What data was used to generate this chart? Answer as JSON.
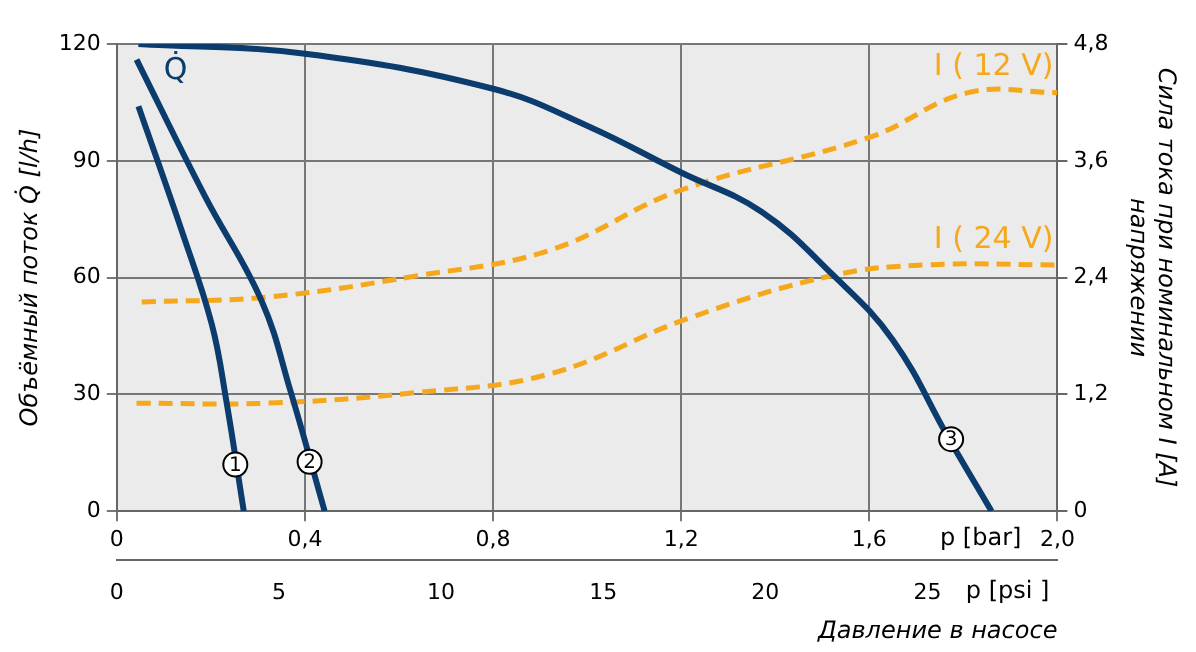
{
  "chart_data": {
    "type": "line",
    "xlabel": "p [bar]",
    "x2label": "p [psi ]",
    "ylabel": "Объёмный поток Q̇ [l/h]",
    "y2label": "Сила тока при номинальном I [A]\nнапряжении",
    "xlim": [
      0,
      2.0
    ],
    "xticks": [
      0,
      {
        "value": 0.4,
        "label": "0,4"
      },
      {
        "value": 0.8,
        "label": "0,8"
      },
      {
        "value": 1.2,
        "label": "1,2"
      },
      {
        "value": 1.6,
        "label": "1,6"
      },
      {
        "value": 2.0,
        "label": "2,0"
      }
    ],
    "x2lim": [
      0,
      29.0075
    ],
    "x2ticks": [
      0,
      5,
      10,
      15,
      20,
      25
    ],
    "ylim": [
      0,
      120
    ],
    "yticks": [
      0,
      30,
      60,
      90,
      120
    ],
    "y2lim": [
      0,
      4.8
    ],
    "y2ticks": [
      0,
      {
        "value": 1.2,
        "label": "1,2"
      },
      {
        "value": 2.4,
        "label": "2,4"
      },
      {
        "value": 3.6,
        "label": "3,6"
      },
      {
        "value": 4.8,
        "label": "4,8"
      }
    ],
    "series": [
      {
        "color": "#0b3c6d",
        "line_style": "solid",
        "x": [
          0.046,
          0.141,
          0.202,
          0.232,
          0.27
        ],
        "values": [
          104,
          71,
          48,
          29,
          0
        ]
      },
      {
        "color": "#0b3c6d",
        "line_style": "solid",
        "x": [
          0.042,
          0.187,
          0.308,
          0.369,
          0.442
        ],
        "values": [
          116,
          81,
          54,
          31,
          0
        ]
      },
      {
        "color": "#0b3c6d",
        "line_style": "solid",
        "x": [
          0.046,
          0.4,
          0.8,
          1.0,
          1.2,
          1.37,
          1.52,
          1.65,
          1.77,
          1.86
        ],
        "values": [
          120,
          117.5,
          108.5,
          99,
          87,
          77,
          61,
          44,
          18.5,
          0
        ]
      },
      {
        "name": "I ( 12 V)",
        "color": "#f5a81c",
        "line_style": "dashed",
        "axis": "y2",
        "x": [
          0.053,
          0.32,
          0.64,
          0.92,
          1.2,
          1.6,
          1.81,
          2.0
        ],
        "values": [
          2.15,
          2.2,
          2.42,
          2.68,
          3.3,
          3.84,
          4.3,
          4.3
        ]
      },
      {
        "name": "I ( 24 V)",
        "color": "#f5a81c",
        "line_style": "dashed",
        "axis": "y2",
        "x": [
          0.042,
          0.32,
          0.64,
          0.92,
          1.22,
          1.52,
          1.72,
          2.0
        ],
        "values": [
          1.11,
          1.11,
          1.22,
          1.41,
          1.99,
          2.42,
          2.53,
          2.53
        ]
      }
    ],
    "annotations": [
      {
        "text": "1",
        "x": 0.252,
        "y": 12
      },
      {
        "text": "2",
        "x": 0.41,
        "y": 12.7
      },
      {
        "text": "3",
        "x": 1.774,
        "y": 18.5
      },
      "Q̇",
      "Давление в насосе"
    ],
    "grid": true,
    "legend": false,
    "marker": "none"
  }
}
